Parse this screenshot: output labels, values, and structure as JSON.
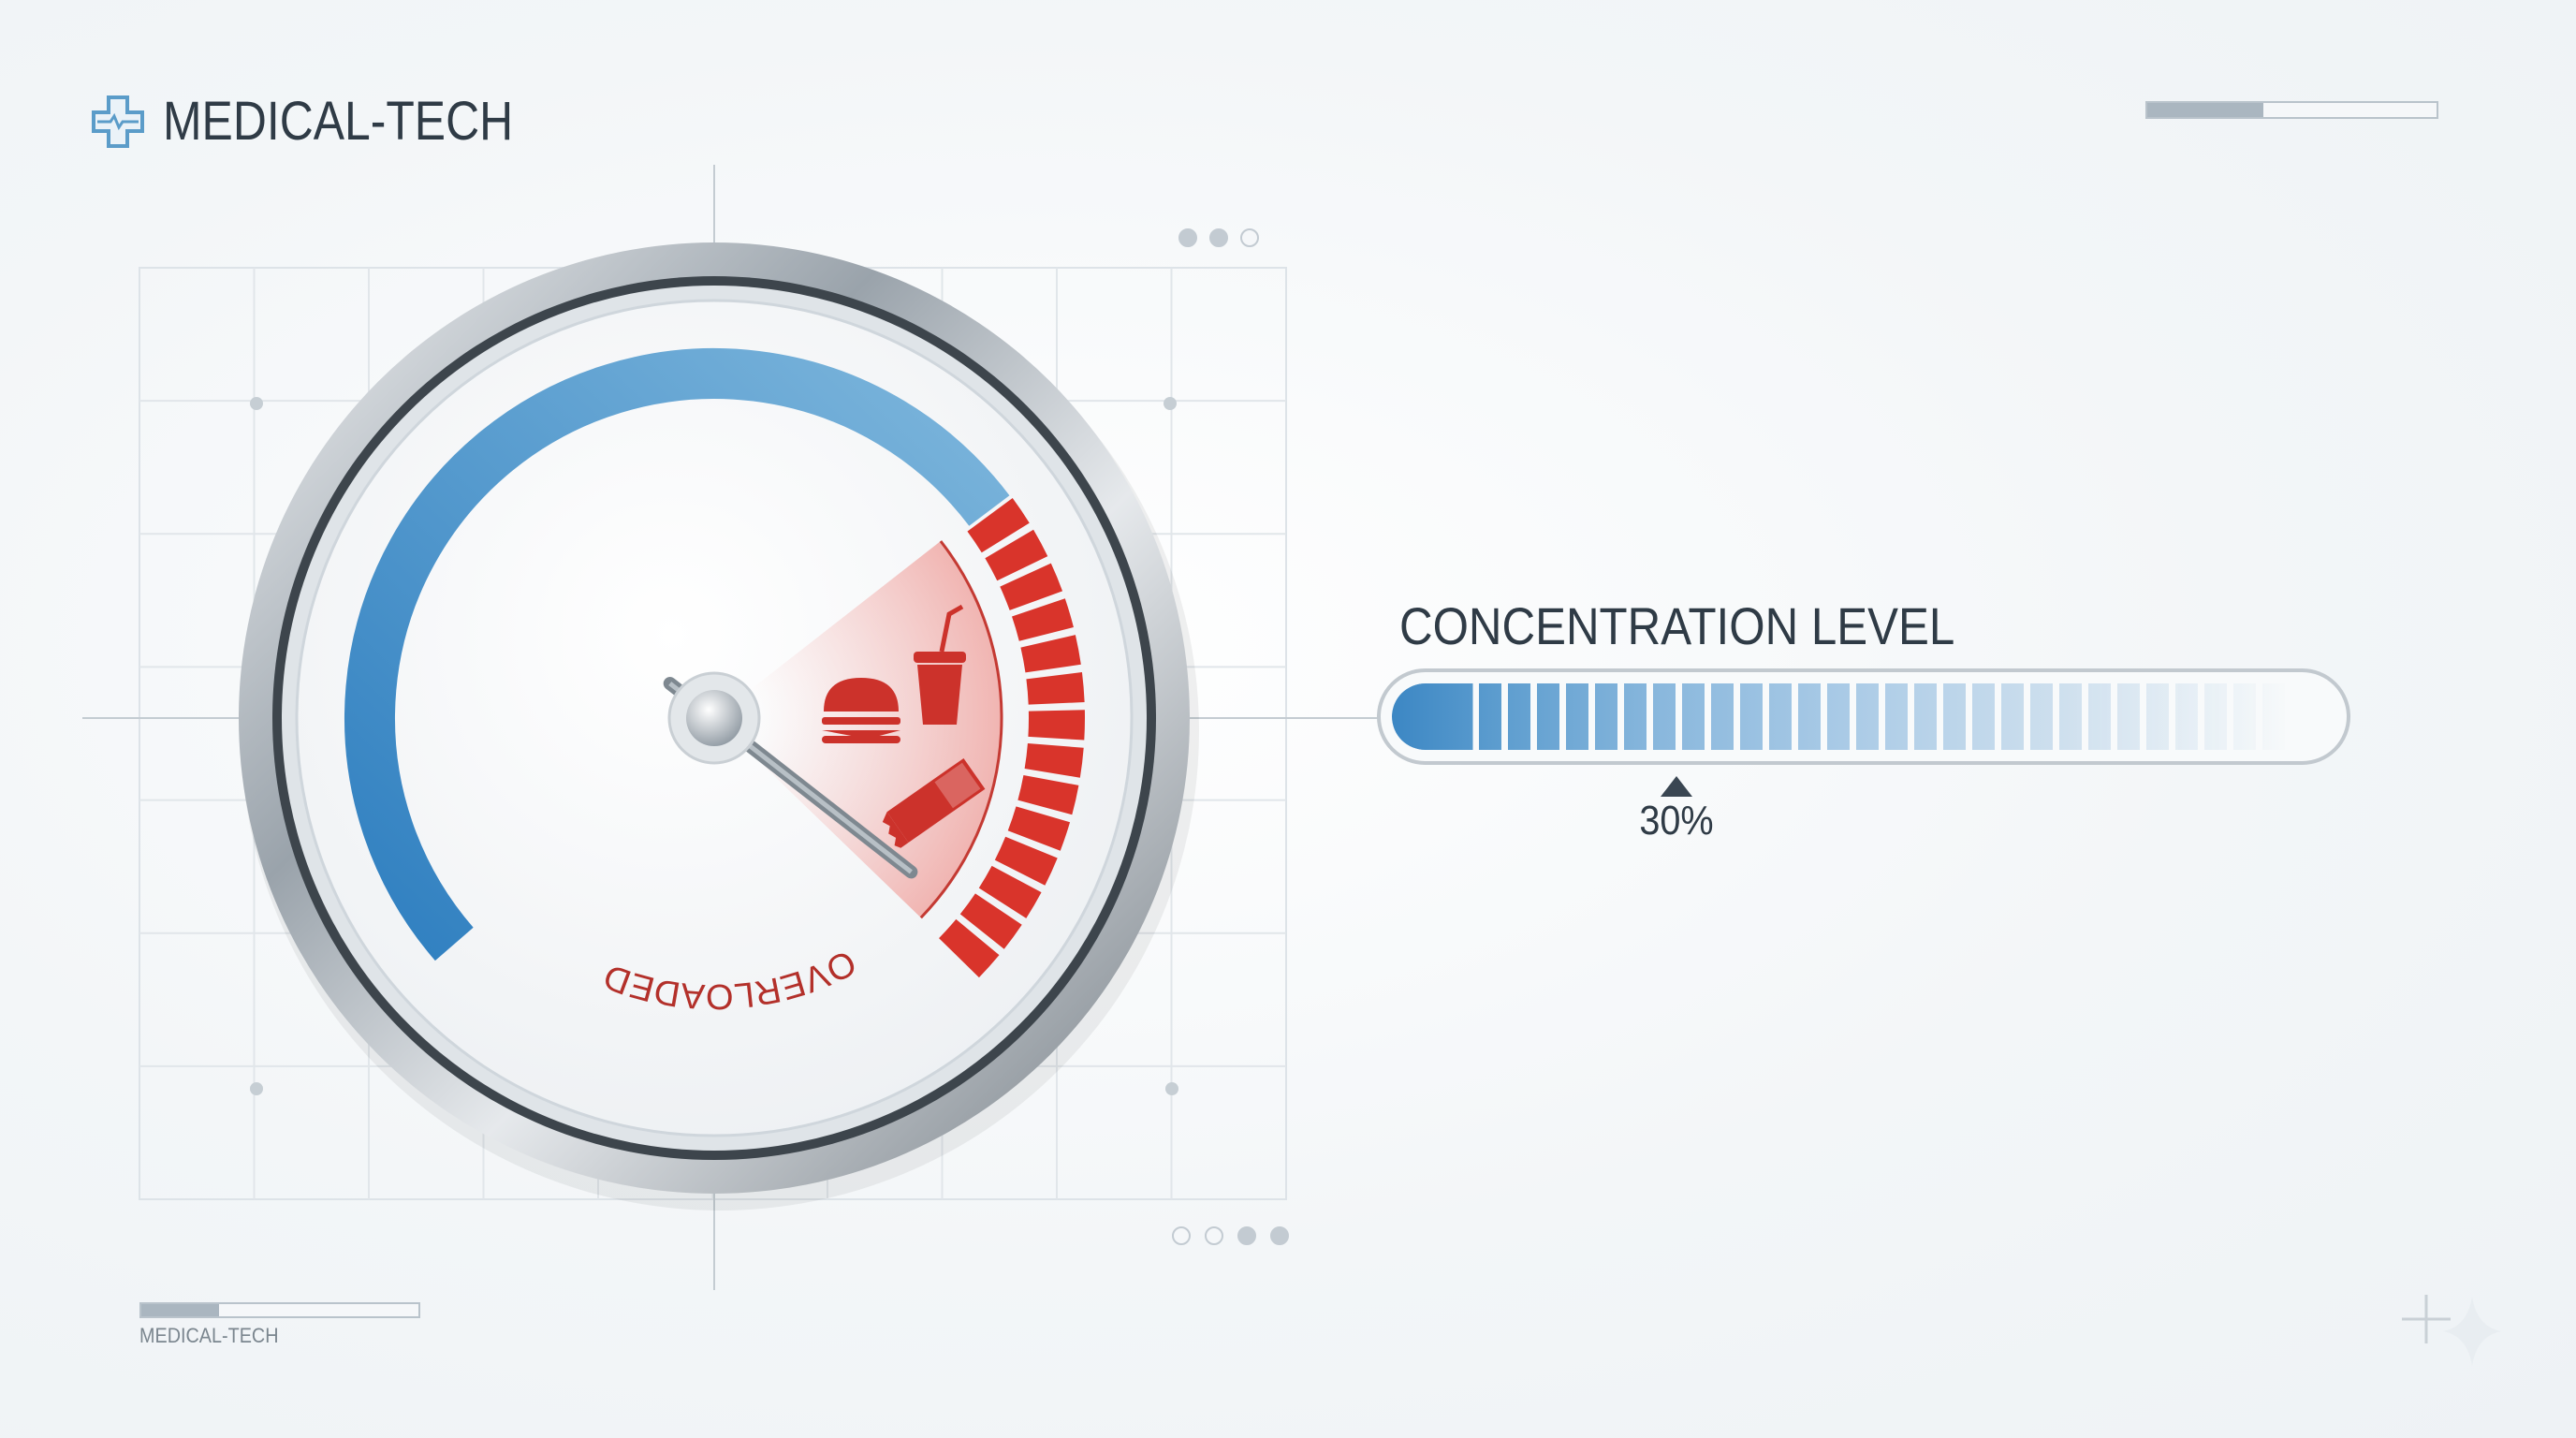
{
  "brand": {
    "name": "MEDICAL-TECH",
    "icon": "medical-cross-icon",
    "accent": "#4a8fc4"
  },
  "header": {
    "status_bar_fill": 0.4
  },
  "gauge": {
    "zone_label": "OVERLOADED",
    "normal_color": "#4a90c8",
    "overload_color": "#d9342b",
    "icons": [
      "burger-icon",
      "soda-cup-icon",
      "chocolate-bar-icon"
    ],
    "top_dots": [
      true,
      true,
      false
    ],
    "bottom_dots": [
      false,
      false,
      true,
      true
    ]
  },
  "concentration": {
    "title": "CONCENTRATION LEVEL",
    "value": 30,
    "value_label": "30%",
    "color": "#3c87c4"
  },
  "footer": {
    "label": "MEDICAL-TECH",
    "bar_fill": 0.28
  }
}
